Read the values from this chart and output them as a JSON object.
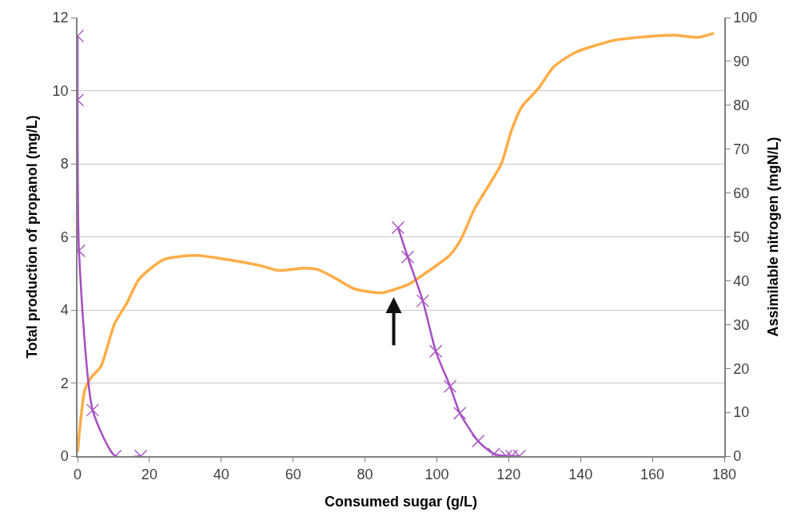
{
  "chart_data": {
    "type": "line",
    "xlabel": "Consumed sugar (g/L)",
    "ylabel": "Total production of propanol (mg/L)",
    "y2label": "Assimilable nitrogen (mgN/L)",
    "xlim": [
      0,
      180
    ],
    "xticks": [
      0,
      20,
      40,
      60,
      80,
      100,
      120,
      140,
      160,
      180
    ],
    "ylim": [
      0,
      12
    ],
    "yticks": [
      0,
      2,
      4,
      6,
      8,
      10,
      12
    ],
    "y2lim": [
      0,
      100
    ],
    "y2ticks": [
      0,
      10,
      20,
      30,
      40,
      50,
      60,
      70,
      80,
      90,
      100
    ],
    "grid": "y",
    "series": [
      {
        "color": "#ffad47",
        "marker": "none",
        "x": [
          0,
          2,
          3.6,
          6.5,
          10.3,
          13.8,
          17.1,
          24,
          33,
          44,
          51,
          56,
          63,
          67,
          71.9,
          77,
          84.6,
          91.9,
          96.3,
          103.7,
          106.8,
          110.4,
          117.9,
          120.8,
          123.7,
          128.2,
          132.6,
          138.6,
          149,
          158.7,
          166,
          172.7,
          177.1
        ],
        "values": [
          0.1,
          1.8,
          2.13,
          2.45,
          3.62,
          4.2,
          4.84,
          5.38,
          5.49,
          5.34,
          5.21,
          5.08,
          5.14,
          5.1,
          4.86,
          4.58,
          4.47,
          4.69,
          4.97,
          5.51,
          5.95,
          6.75,
          7.99,
          8.92,
          9.57,
          10.05,
          10.66,
          11.05,
          11.37,
          11.48,
          11.52,
          11.46,
          11.57
        ]
      },
      {
        "color": "#a64fc1",
        "marker": "cross",
        "axis": "y2",
        "x": [
          0,
          0,
          0.4,
          4.2,
          10.5,
          17.6
        ],
        "values": [
          95.8,
          81.2,
          46.8,
          10.5,
          0,
          0
        ]
      },
      {
        "color": "#a64fc1",
        "marker": "cross",
        "axis": "y2",
        "x": [
          89.2,
          91.9,
          96.1,
          99.7,
          103.7,
          106.4,
          111.5,
          115.9,
          119.3,
          120.8,
          123
        ],
        "values": [
          52.1,
          45.4,
          35.4,
          23.9,
          15.9,
          9.8,
          3.4,
          0.5,
          0,
          0,
          0
        ]
      }
    ]
  }
}
